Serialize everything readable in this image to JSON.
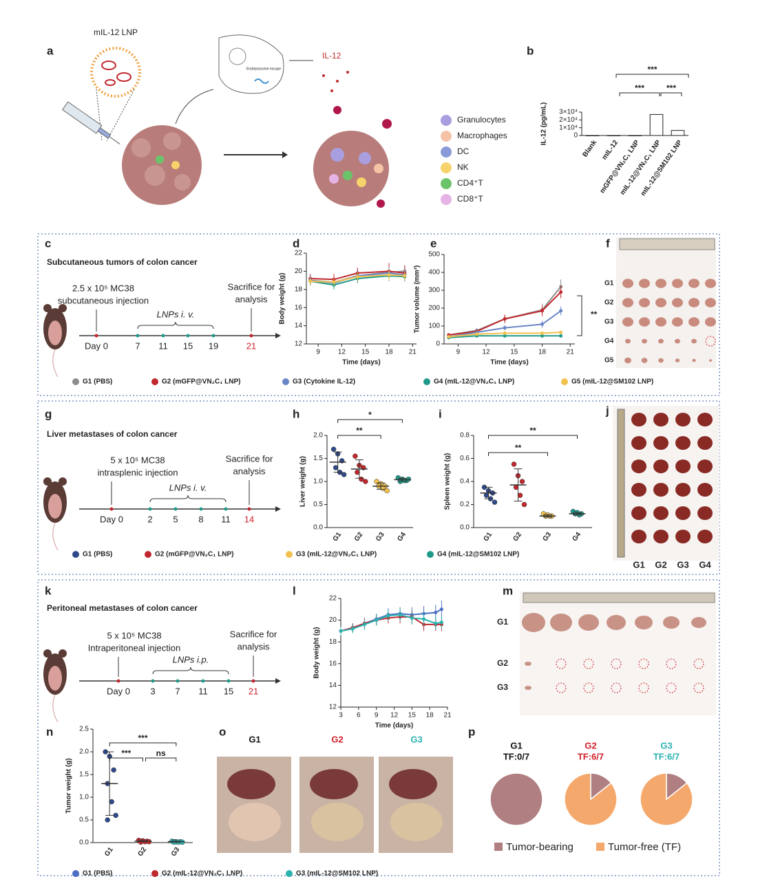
{
  "panel_labels": [
    "a",
    "b",
    "c",
    "d",
    "e",
    "f",
    "g",
    "h",
    "i",
    "j",
    "k",
    "l",
    "m",
    "n",
    "o",
    "p"
  ],
  "panel_a": {
    "lnp_label": "mIL-12 LNP",
    "escape_text": "Endolysosome escape",
    "product": "IL-12",
    "legend": [
      "Granulocytes",
      "Macrophages",
      "DC",
      "NK",
      "CD4⁺T",
      "CD8⁺T"
    ],
    "legend_colors": [
      "#a99ee0",
      "#f5c3a6",
      "#8a9ad8",
      "#f6d36b",
      "#6cc46a",
      "#e6b3e6"
    ]
  },
  "panel_c": {
    "title": "Subcutaneous tumors of colon cancer",
    "injection": [
      "2.5 x 10⁵ MC38",
      "subcutaneous injection"
    ],
    "dosing": "LNPs i. v.",
    "endpoint": [
      "Sacrifice for",
      "analysis"
    ],
    "days": [
      "Day 0",
      "7",
      "11",
      "15",
      "19",
      "21"
    ]
  },
  "panel_f": {
    "groups": [
      "G1",
      "G2",
      "G3",
      "G4",
      "G5"
    ]
  },
  "panel_g": {
    "title": "Liver metastases of colon cancer",
    "injection": [
      "5 x 10⁵ MC38",
      "intrasplenic injection"
    ],
    "dosing": "LNPs i. v.",
    "endpoint": [
      "Sacrifice for",
      "analysis"
    ],
    "days": [
      "Day 0",
      "2",
      "5",
      "8",
      "11",
      "14"
    ],
    "legend": [
      "G1 (PBS)",
      "G2 (mGFP@VN₂C₁ LNP)",
      "G3 (mIL-12@VN₂C₁ LNP)",
      "G4 (mIL-12@SM102 LNP)"
    ]
  },
  "panel_j": {
    "groups": [
      "G1",
      "G2",
      "G3",
      "G4"
    ]
  },
  "panel_k": {
    "title": "Peritoneal metastases of colon cancer",
    "injection": [
      "5 x 10⁵ MC38",
      "Intraperitoneal injection"
    ],
    "dosing": "LNPs i.p.",
    "endpoint": [
      "Sacrifice for",
      "analysis"
    ],
    "days": [
      "Day 0",
      "3",
      "7",
      "11",
      "15",
      "21"
    ]
  },
  "panel_m": {
    "groups": [
      "G1",
      "G2",
      "G3"
    ]
  },
  "panel_o": {
    "groups": [
      "G1",
      "G2",
      "G3"
    ],
    "colors": [
      "#111111",
      "#d0202a",
      "#2bb3b0"
    ]
  },
  "chart_data": [
    {
      "type": "bar",
      "ylabel": "IL-12 (pg/mL)",
      "categories": [
        "Blank",
        "mIL-12",
        "mGFP@VN₂C₁ LNP",
        "mIL-12@VN₂C₁ LNP",
        "mIL-12@SM102 LNP"
      ],
      "values": [
        0,
        0,
        0,
        27000,
        6500
      ],
      "color": "#ffffff",
      "ylim": [
        0,
        30000
      ],
      "yticks": [
        0,
        {
          "value": 10000,
          "label": "1×10⁴"
        },
        {
          "value": 20000,
          "label": "2×10⁴"
        },
        {
          "value": 30000,
          "label": "3×10⁴"
        }
      ],
      "significance": [
        "***",
        "***",
        "***"
      ]
    },
    {
      "type": "line",
      "xlabel": "Time (days)",
      "ylabel": "Body weight (g)",
      "x": [
        8,
        11,
        14,
        18,
        20
      ],
      "xlim": [
        7.5,
        21.5
      ],
      "xticks": [
        9,
        12,
        15,
        18,
        21
      ],
      "ylim": [
        12,
        22
      ],
      "yticks": [
        12,
        14,
        16,
        18,
        20,
        22
      ],
      "series": [
        {
          "name": "G1 (PBS)",
          "color": "#8c8c8c",
          "values": [
            19.0,
            18.8,
            19.5,
            19.9,
            20.0
          ],
          "errors": [
            0.6,
            0.5,
            0.7,
            0.8,
            0.7
          ]
        },
        {
          "name": "G2 (mGFP@VN₂C₁ LNP)",
          "color": "#c0282d",
          "values": [
            19.2,
            19.1,
            19.8,
            20.0,
            19.8
          ],
          "errors": [
            0.5,
            0.6,
            0.6,
            0.9,
            0.8
          ]
        },
        {
          "name": "G3 (Cytokine IL-12)",
          "color": "#6b86c6",
          "values": [
            19.0,
            18.7,
            19.5,
            19.8,
            19.6
          ],
          "errors": [
            0.5,
            0.5,
            0.6,
            0.7,
            0.6
          ]
        },
        {
          "name": "G4 (mIL-12@VN₂C₁ LNP)",
          "color": "#1f9a8a",
          "values": [
            18.9,
            18.5,
            19.2,
            19.5,
            19.4
          ],
          "errors": [
            0.4,
            0.5,
            0.5,
            0.6,
            0.5
          ]
        },
        {
          "name": "G5 (mIL-12@SM102 LNP)",
          "color": "#f2c14e",
          "values": [
            18.9,
            18.8,
            19.4,
            19.6,
            19.5
          ],
          "errors": [
            0.4,
            0.4,
            0.5,
            0.6,
            0.5
          ]
        }
      ]
    },
    {
      "type": "line",
      "xlabel": "Time (days)",
      "ylabel": "Tumor volume (mm³)",
      "x": [
        8,
        11,
        14,
        18,
        20
      ],
      "xlim": [
        7.5,
        21.5
      ],
      "xticks": [
        9,
        12,
        15,
        18,
        21
      ],
      "ylim": [
        0,
        500
      ],
      "yticks": [
        0,
        100,
        200,
        300,
        400,
        500
      ],
      "series": [
        {
          "name": "G1",
          "color": "#8c8c8c",
          "values": [
            50,
            75,
            140,
            190,
            320
          ],
          "errors": [
            8,
            12,
            25,
            35,
            40
          ]
        },
        {
          "name": "G2",
          "color": "#c0282d",
          "values": [
            50,
            70,
            140,
            185,
            290
          ],
          "errors": [
            8,
            10,
            22,
            30,
            35
          ]
        },
        {
          "name": "G3",
          "color": "#6b86c6",
          "values": [
            40,
            65,
            90,
            110,
            185
          ],
          "errors": [
            6,
            10,
            15,
            20,
            25
          ]
        },
        {
          "name": "G4",
          "color": "#1f9a8a",
          "values": [
            35,
            45,
            45,
            45,
            45
          ],
          "errors": [
            5,
            5,
            6,
            6,
            6
          ]
        },
        {
          "name": "G5",
          "color": "#f2c14e",
          "values": [
            40,
            55,
            60,
            60,
            65
          ],
          "errors": [
            5,
            6,
            8,
            8,
            8
          ]
        }
      ],
      "significance": [
        "**"
      ]
    },
    {
      "type": "strip",
      "ylabel": "Liver weight (g)",
      "categories": [
        "G1",
        "G2",
        "G3",
        "G4"
      ],
      "colors": [
        "#2f4a8a",
        "#c0282d",
        "#f2c14e",
        "#1f9a8a"
      ],
      "values": [
        [
          1.7,
          1.6,
          1.45,
          1.3,
          1.2,
          1.15
        ],
        [
          1.55,
          1.35,
          1.3,
          1.2,
          1.05,
          1.0
        ],
        [
          1.0,
          0.95,
          0.9,
          0.9,
          0.85,
          0.8
        ],
        [
          1.08,
          1.05,
          1.02,
          1.0,
          1.02,
          1.05
        ]
      ],
      "means": [
        1.42,
        1.27,
        0.9,
        1.04
      ],
      "sds": [
        0.22,
        0.2,
        0.07,
        0.03
      ],
      "ylim": [
        0,
        2
      ],
      "yticks": [
        {
          "value": 0,
          "label": "0.0"
        },
        0.5,
        {
          "value": 1,
          "label": "1.0"
        },
        1.5,
        {
          "value": 2,
          "label": "2.0"
        }
      ],
      "significance": [
        "*",
        "**"
      ]
    },
    {
      "type": "strip",
      "ylabel": "Spleen weight (g)",
      "categories": [
        "G1",
        "G2",
        "G3",
        "G4"
      ],
      "colors": [
        "#2f4a8a",
        "#c0282d",
        "#f2c14e",
        "#1f9a8a"
      ],
      "values": [
        [
          0.35,
          0.32,
          0.3,
          0.28,
          0.25,
          0.22
        ],
        [
          0.55,
          0.45,
          0.4,
          0.35,
          0.28,
          0.2
        ],
        [
          0.12,
          0.11,
          0.1,
          0.1,
          0.1
        ],
        [
          0.14,
          0.13,
          0.12,
          0.12,
          0.11
        ]
      ],
      "means": [
        0.3,
        0.37,
        0.1,
        0.12
      ],
      "sds": [
        0.05,
        0.14,
        0.01,
        0.01
      ],
      "ylim": [
        0,
        0.8
      ],
      "yticks": [
        {
          "value": 0,
          "label": "0.0"
        },
        0.2,
        0.4,
        0.6,
        0.8
      ],
      "significance": [
        "**",
        "**"
      ]
    },
    {
      "type": "line",
      "xlabel": "Time (days)",
      "ylabel": "Body weight (g)",
      "x": [
        3,
        5,
        7,
        9,
        11,
        13,
        15,
        17,
        19,
        20
      ],
      "xlim": [
        3,
        21
      ],
      "xticks": [
        3,
        6,
        9,
        12,
        15,
        18,
        21
      ],
      "ylim": [
        12,
        22
      ],
      "yticks": [
        12,
        14,
        16,
        18,
        20,
        22
      ],
      "series": [
        {
          "name": "G1 (PBS)",
          "color": "#4a6fc4",
          "values": [
            19.0,
            19.3,
            19.7,
            20.1,
            20.5,
            20.6,
            20.5,
            20.6,
            20.7,
            21.0
          ],
          "errors": [
            0.4,
            0.4,
            0.5,
            0.5,
            0.6,
            0.6,
            0.7,
            0.7,
            0.7,
            0.8
          ]
        },
        {
          "name": "G2 (mIL-12@VN₂C₁ LNP)",
          "color": "#c0282d",
          "values": [
            19.0,
            19.3,
            19.7,
            20.0,
            20.2,
            20.3,
            20.3,
            19.6,
            19.6,
            19.6
          ],
          "errors": [
            0.4,
            0.4,
            0.5,
            0.5,
            0.5,
            0.6,
            0.6,
            0.6,
            0.6,
            0.6
          ]
        },
        {
          "name": "G3 (mIL-12@SM102 LNP)",
          "color": "#2bb3b0",
          "values": [
            19.0,
            19.2,
            19.6,
            20.0,
            20.4,
            20.5,
            20.2,
            20.1,
            19.7,
            19.8
          ],
          "errors": [
            0.4,
            0.4,
            0.5,
            0.5,
            0.5,
            0.6,
            0.6,
            0.6,
            0.6,
            0.6
          ]
        }
      ]
    },
    {
      "type": "strip",
      "ylabel": "Tumor weight (g)",
      "categories": [
        "G1",
        "G2",
        "G3"
      ],
      "colors": [
        "#2f4a8a",
        "#c0282d",
        "#2bb3b0"
      ],
      "values": [
        [
          2.0,
          1.9,
          1.6,
          1.3,
          0.9,
          0.6,
          0.5
        ],
        [
          0.05,
          0.04,
          0.03,
          0.03,
          0.02,
          0.02,
          0.01
        ],
        [
          0.03,
          0.02,
          0.02,
          0.02,
          0.01,
          0.01,
          0.01
        ]
      ],
      "means": [
        1.3,
        0.03,
        0.02
      ],
      "sds": [
        0.7,
        0.01,
        0.01
      ],
      "ylim": [
        0,
        2.5
      ],
      "yticks": [
        {
          "value": 0,
          "label": "0.0"
        },
        0.5,
        {
          "value": 1,
          "label": "1.0"
        },
        1.5,
        {
          "value": 2,
          "label": "2.0"
        },
        2.5
      ],
      "significance": [
        "***",
        "***",
        "ns"
      ]
    },
    {
      "type": "pie",
      "categories": [
        "Tumor-bearing",
        "Tumor-free (TF)"
      ],
      "colors": [
        "#b07f82",
        "#f5a86b"
      ],
      "pies": [
        {
          "title": "G1",
          "subtitle": "TF:0/7",
          "color": "#111111",
          "values": [
            7,
            0
          ]
        },
        {
          "title": "G2",
          "subtitle": "TF:6/7",
          "color": "#d0202a",
          "values": [
            1,
            6
          ]
        },
        {
          "title": "G3",
          "subtitle": "TF:6/7",
          "color": "#2bb3b0",
          "values": [
            1,
            6
          ]
        }
      ]
    }
  ]
}
